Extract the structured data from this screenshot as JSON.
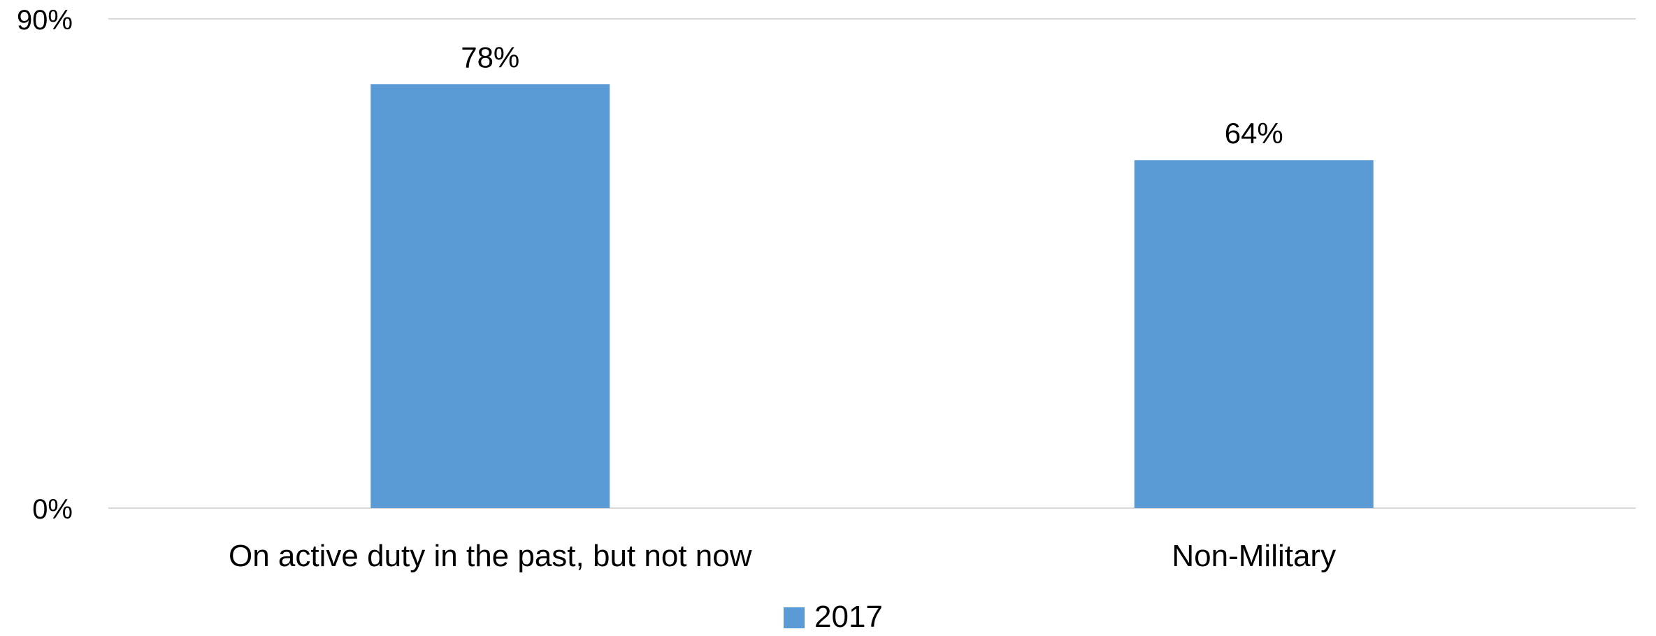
{
  "chart_data": {
    "type": "bar",
    "categories": [
      "On active duty in the past, but not now",
      "Non-Military"
    ],
    "series": [
      {
        "name": "2017",
        "values": [
          78,
          64
        ],
        "data_labels": [
          "78%",
          "64%"
        ],
        "color": "#5B9BD5"
      }
    ],
    "ylim": [
      0,
      90
    ],
    "y_ticks": [
      {
        "value": 0,
        "label": "0%"
      },
      {
        "value": 90,
        "label": "90%"
      }
    ],
    "grid": true,
    "legend_placement": "bottom-center",
    "gridline_color": "#D9D9D9"
  }
}
